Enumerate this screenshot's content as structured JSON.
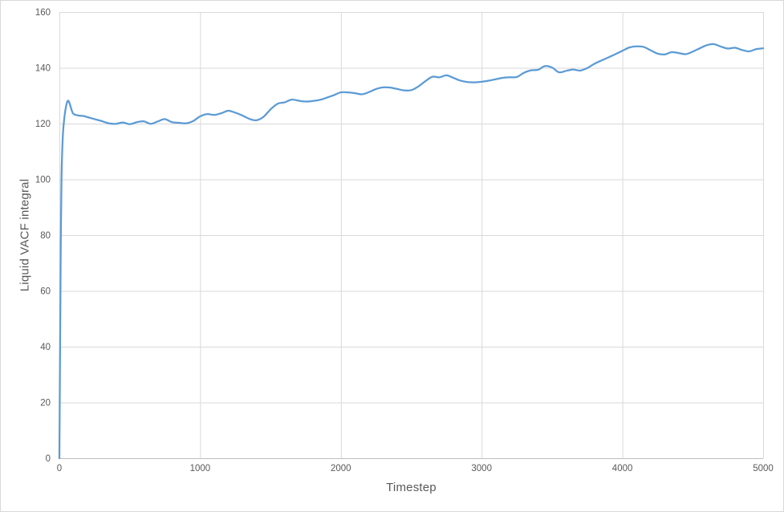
{
  "chart_data": {
    "type": "line",
    "title": "",
    "xlabel": "Timestep",
    "ylabel": "Liquid VACF integral",
    "xlim": [
      0,
      5000
    ],
    "ylim": [
      0,
      160
    ],
    "xticks": [
      0,
      1000,
      2000,
      3000,
      4000,
      5000
    ],
    "yticks": [
      0,
      20,
      40,
      60,
      80,
      100,
      120,
      140,
      160
    ],
    "grid": true,
    "legend": false,
    "smooth": true,
    "series": [
      {
        "name": "Liquid VACF integral",
        "x": [
          0,
          5,
          10,
          15,
          20,
          25,
          30,
          40,
          50,
          60,
          70,
          80,
          90,
          100,
          125,
          150,
          175,
          200,
          250,
          300,
          350,
          400,
          450,
          500,
          550,
          600,
          650,
          700,
          750,
          800,
          850,
          900,
          950,
          1000,
          1050,
          1100,
          1150,
          1200,
          1250,
          1300,
          1350,
          1400,
          1450,
          1500,
          1550,
          1600,
          1650,
          1700,
          1750,
          1800,
          1850,
          1900,
          1950,
          2000,
          2050,
          2100,
          2150,
          2200,
          2250,
          2300,
          2350,
          2400,
          2450,
          2500,
          2550,
          2600,
          2650,
          2700,
          2750,
          2800,
          2850,
          2900,
          2950,
          3000,
          3050,
          3100,
          3150,
          3200,
          3250,
          3300,
          3350,
          3400,
          3450,
          3500,
          3550,
          3600,
          3650,
          3700,
          3750,
          3800,
          3850,
          3900,
          3950,
          4000,
          4050,
          4100,
          4150,
          4200,
          4250,
          4300,
          4350,
          4400,
          4450,
          4500,
          4550,
          4600,
          4650,
          4700,
          4750,
          4800,
          4850,
          4900,
          4950,
          5000
        ],
        "y": [
          0,
          40,
          78,
          100,
          110,
          116,
          119.5,
          124,
          126.8,
          128.2,
          127.6,
          126,
          124.4,
          123.5,
          123,
          122.8,
          122.7,
          122.3,
          121.6,
          120.9,
          120.1,
          119.9,
          120.4,
          119.8,
          120.5,
          120.8,
          119.9,
          120.8,
          121.6,
          120.5,
          120.3,
          120.1,
          120.9,
          122.6,
          123.4,
          123.1,
          123.7,
          124.6,
          123.9,
          122.9,
          121.7,
          121.2,
          122.4,
          125.1,
          127.1,
          127.6,
          128.6,
          128.2,
          127.9,
          128.1,
          128.5,
          129.3,
          130.2,
          131.2,
          131.2,
          130.9,
          130.5,
          131.3,
          132.4,
          133,
          132.9,
          132.4,
          131.9,
          132,
          133.3,
          135.2,
          136.8,
          136.6,
          137.3,
          136.4,
          135.4,
          134.9,
          134.8,
          135,
          135.4,
          135.9,
          136.4,
          136.6,
          136.7,
          138.2,
          139.1,
          139.3,
          140.6,
          140.1,
          138.4,
          138.9,
          139.4,
          139,
          139.9,
          141.4,
          142.6,
          143.7,
          144.9,
          146.1,
          147.3,
          147.7,
          147.5,
          146.3,
          145.1,
          144.8,
          145.6,
          145.3,
          144.9,
          145.8,
          147,
          148.1,
          148.5,
          147.6,
          146.9,
          147.2,
          146.4,
          145.9,
          146.7,
          147
        ]
      }
    ]
  },
  "colors": {
    "line": "#5B9BD5",
    "gridline": "#D9D9D9",
    "axis_line": "#BFBFBF",
    "tick_text": "#595959",
    "title_text": "#595959",
    "background": "#FFFFFF",
    "border": "#D9D9D9"
  }
}
